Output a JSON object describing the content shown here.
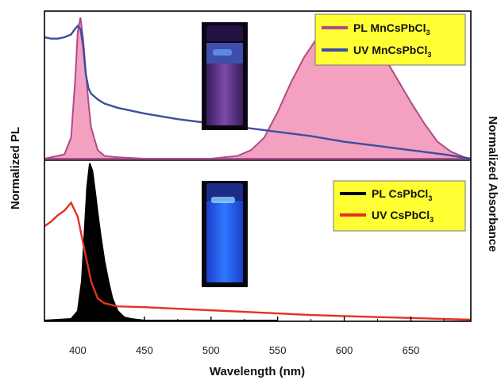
{
  "chart_data": [
    {
      "panel": "top",
      "type": "area",
      "xlabel": "Wavelength (nm)",
      "ylabel_left": "Normalized PL",
      "ylabel_right": "Normalized Absorbance",
      "xlim": [
        375,
        695
      ],
      "ylim": [
        0,
        1
      ],
      "x_ticks": [
        400,
        450,
        500,
        550,
        600,
        650
      ],
      "legend_position": "top-right",
      "legend_background": "#ffff33",
      "inset": "vial-photo-purple",
      "series": [
        {
          "name": "PL MnCsPbCl",
          "name_sub": "3",
          "kind": "filled",
          "color": "#b04a8c",
          "fill": "#f4a0c0",
          "x": [
            375,
            390,
            395,
            398,
            400,
            402,
            404,
            406,
            408,
            410,
            415,
            420,
            430,
            450,
            500,
            520,
            530,
            540,
            550,
            560,
            570,
            580,
            590,
            600,
            610,
            620,
            630,
            640,
            650,
            660,
            670,
            680,
            690,
            695
          ],
          "y": [
            0.0,
            0.03,
            0.15,
            0.55,
            0.9,
            1.0,
            0.85,
            0.62,
            0.4,
            0.22,
            0.06,
            0.02,
            0.01,
            0.0,
            0.0,
            0.02,
            0.06,
            0.15,
            0.33,
            0.54,
            0.72,
            0.86,
            0.95,
            0.98,
            0.95,
            0.86,
            0.72,
            0.56,
            0.4,
            0.25,
            0.12,
            0.05,
            0.01,
            0.0
          ]
        },
        {
          "name": "UV MnCsPbCl",
          "name_sub": "3",
          "kind": "line",
          "color": "#3a4fa0",
          "x": [
            375,
            380,
            385,
            390,
            395,
            398,
            400,
            402,
            404,
            406,
            408,
            410,
            415,
            420,
            430,
            450,
            475,
            500,
            525,
            550,
            575,
            600,
            625,
            650,
            675,
            695
          ],
          "y": [
            0.86,
            0.85,
            0.85,
            0.86,
            0.88,
            0.92,
            0.94,
            0.92,
            0.8,
            0.6,
            0.5,
            0.46,
            0.42,
            0.39,
            0.36,
            0.32,
            0.28,
            0.25,
            0.22,
            0.19,
            0.16,
            0.12,
            0.09,
            0.06,
            0.03,
            0.0
          ]
        }
      ]
    },
    {
      "panel": "bottom",
      "type": "area",
      "xlim": [
        375,
        695
      ],
      "ylim": [
        0,
        1
      ],
      "legend_position": "top-right",
      "legend_background": "#ffff33",
      "inset": "vial-photo-blue",
      "series": [
        {
          "name": "PL CsPbCl",
          "name_sub": "3",
          "kind": "filled",
          "color": "#000000",
          "fill": "#000000",
          "x": [
            375,
            395,
            400,
            403,
            405,
            407,
            409,
            411,
            413,
            415,
            417,
            420,
            423,
            426,
            430,
            435,
            440,
            450,
            500,
            550
          ],
          "y": [
            0.0,
            0.01,
            0.06,
            0.25,
            0.55,
            0.85,
            1.0,
            0.95,
            0.82,
            0.68,
            0.55,
            0.38,
            0.25,
            0.14,
            0.06,
            0.02,
            0.01,
            0.0,
            0.0,
            0.0
          ]
        },
        {
          "name": "UV CsPbCl",
          "name_sub": "3",
          "kind": "line",
          "color": "#e43127",
          "x": [
            375,
            380,
            385,
            390,
            395,
            400,
            405,
            410,
            415,
            420,
            425,
            430,
            450,
            475,
            500,
            525,
            550,
            575,
            600,
            625,
            650,
            675,
            695
          ],
          "y": [
            0.6,
            0.63,
            0.67,
            0.7,
            0.75,
            0.66,
            0.45,
            0.25,
            0.14,
            0.11,
            0.1,
            0.09,
            0.085,
            0.075,
            0.065,
            0.055,
            0.045,
            0.035,
            0.028,
            0.022,
            0.016,
            0.01,
            0.005
          ]
        }
      ]
    }
  ]
}
